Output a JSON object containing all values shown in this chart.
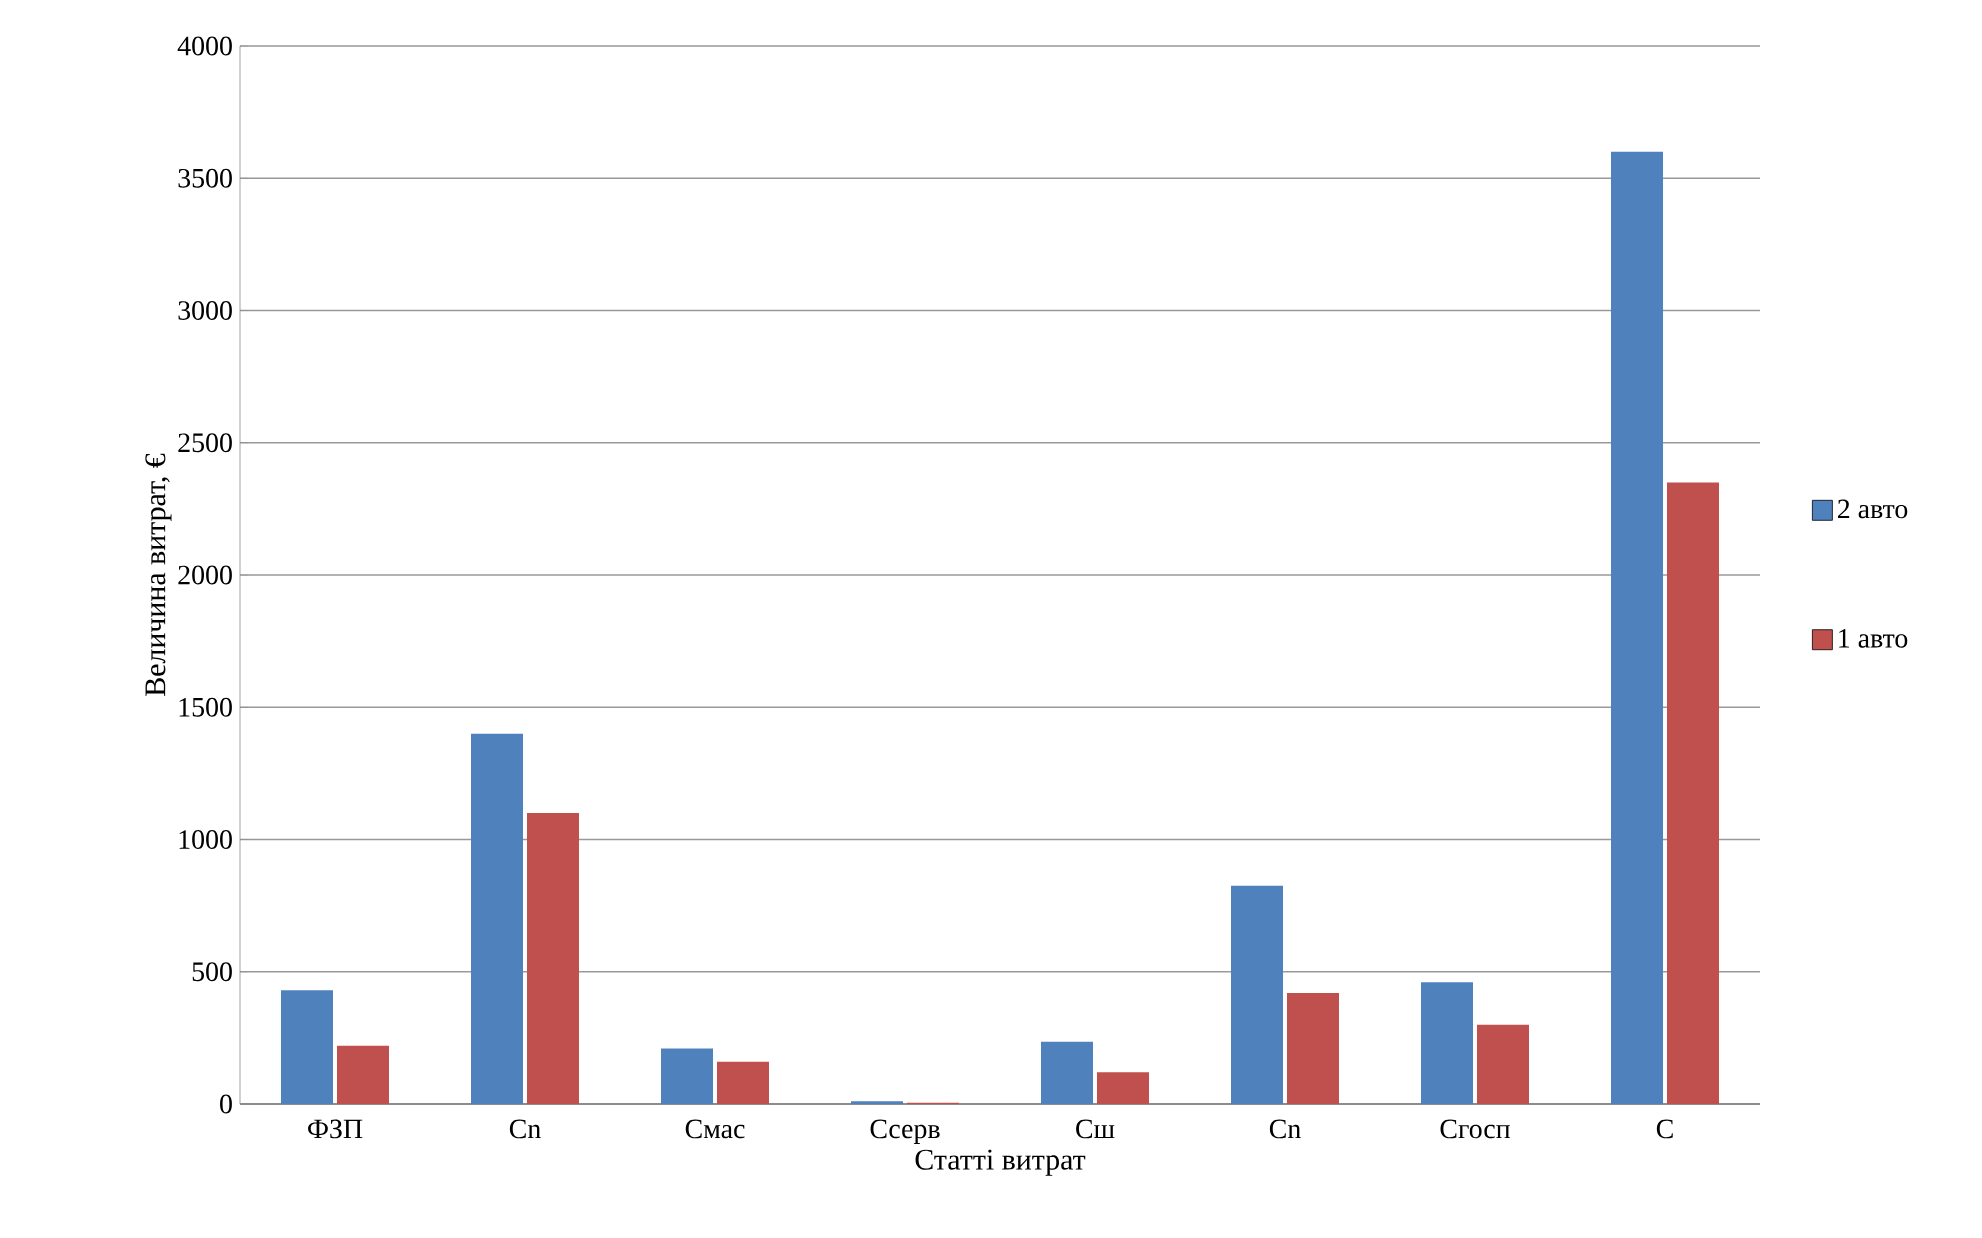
{
  "chart_data": {
    "type": "bar",
    "xlabel": "Статті витрат",
    "ylabel": "Величина витрат, €",
    "categories": [
      "ФЗП",
      "Cn",
      "Смас",
      "Ссерв",
      "Сш",
      "Cn",
      "Сгосп",
      "С"
    ],
    "series": [
      {
        "name": "2 авто",
        "color": "#4f81bd",
        "values": [
          430,
          1400,
          210,
          10,
          235,
          825,
          460,
          3600
        ]
      },
      {
        "name": "1 авто",
        "color": "#c0504d",
        "values": [
          220,
          1100,
          160,
          5,
          120,
          420,
          300,
          2350
        ]
      }
    ],
    "ylim": [
      0,
      4000
    ],
    "yticks": [
      0,
      500,
      1000,
      1500,
      2000,
      2500,
      3000,
      3500,
      4000
    ],
    "grid": "y",
    "legend": "right"
  }
}
